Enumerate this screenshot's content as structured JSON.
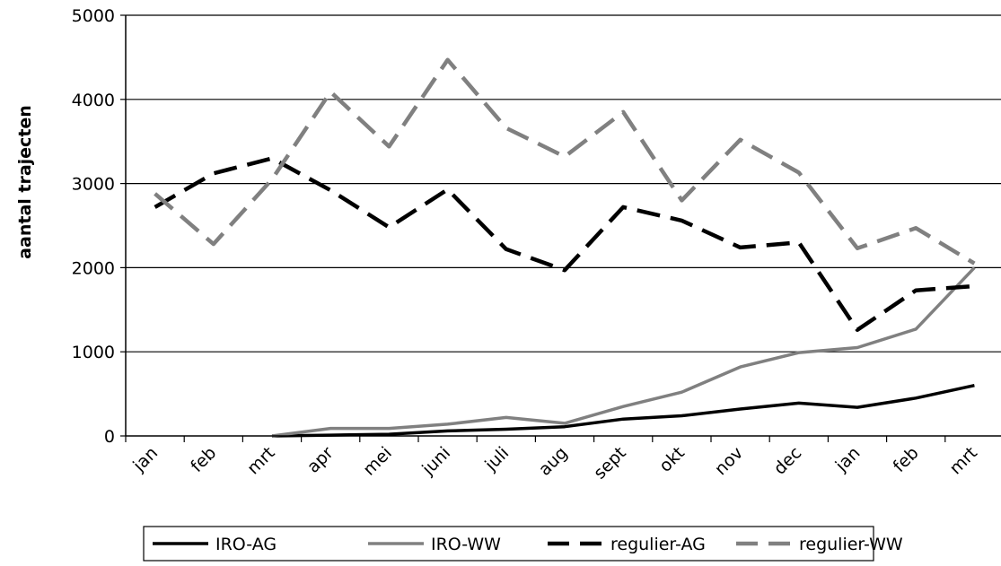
{
  "chart_data": {
    "type": "line",
    "title": "",
    "xlabel": "",
    "ylabel": "aantal trajecten",
    "categories": [
      "jan",
      "feb",
      "mrt",
      "apr",
      "mei",
      "juni",
      "juli",
      "aug",
      "sept",
      "okt",
      "nov",
      "dec",
      "jan",
      "feb",
      "mrt"
    ],
    "ylim": [
      0,
      5000
    ],
    "yticks": [
      0,
      1000,
      2000,
      3000,
      4000,
      5000
    ],
    "grid": "horizontal",
    "legend_position": "bottom",
    "series": [
      {
        "name": "IRO-AG",
        "color": "#000000",
        "dashed": false,
        "values": [
          null,
          null,
          0,
          10,
          20,
          60,
          80,
          110,
          200,
          240,
          320,
          390,
          340,
          450,
          600
        ]
      },
      {
        "name": "IRO-WW",
        "color": "#808080",
        "dashed": false,
        "values": [
          null,
          null,
          0,
          90,
          90,
          140,
          220,
          150,
          350,
          520,
          820,
          990,
          1050,
          1270,
          2000
        ]
      },
      {
        "name": "regulier-AG",
        "color": "#000000",
        "dashed": true,
        "values": [
          2720,
          3120,
          3300,
          2920,
          2480,
          2930,
          2220,
          1970,
          2720,
          2560,
          2240,
          2300,
          1260,
          1730,
          1780
        ]
      },
      {
        "name": "regulier-WW",
        "color": "#808080",
        "dashed": true,
        "values": [
          2880,
          2280,
          3050,
          4090,
          3440,
          4470,
          3660,
          3320,
          3850,
          2800,
          3520,
          3130,
          2230,
          2470,
          2050
        ]
      }
    ]
  }
}
